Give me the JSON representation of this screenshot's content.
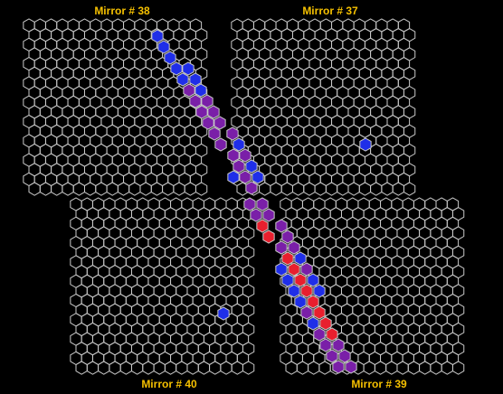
{
  "mirrors": [
    {
      "id": "m38",
      "label": "Mirror # 38"
    },
    {
      "id": "m37",
      "label": "Mirror # 37"
    },
    {
      "id": "m40",
      "label": "Mirror # 40"
    },
    {
      "id": "m39",
      "label": "Mirror # 39"
    }
  ],
  "colors": {
    "background": "#000000",
    "grid": "#c8c8c8",
    "label": "#f5c000",
    "blue": "#1f2ee8",
    "purple": "#7a1fa8",
    "red": "#e81f2e"
  }
}
